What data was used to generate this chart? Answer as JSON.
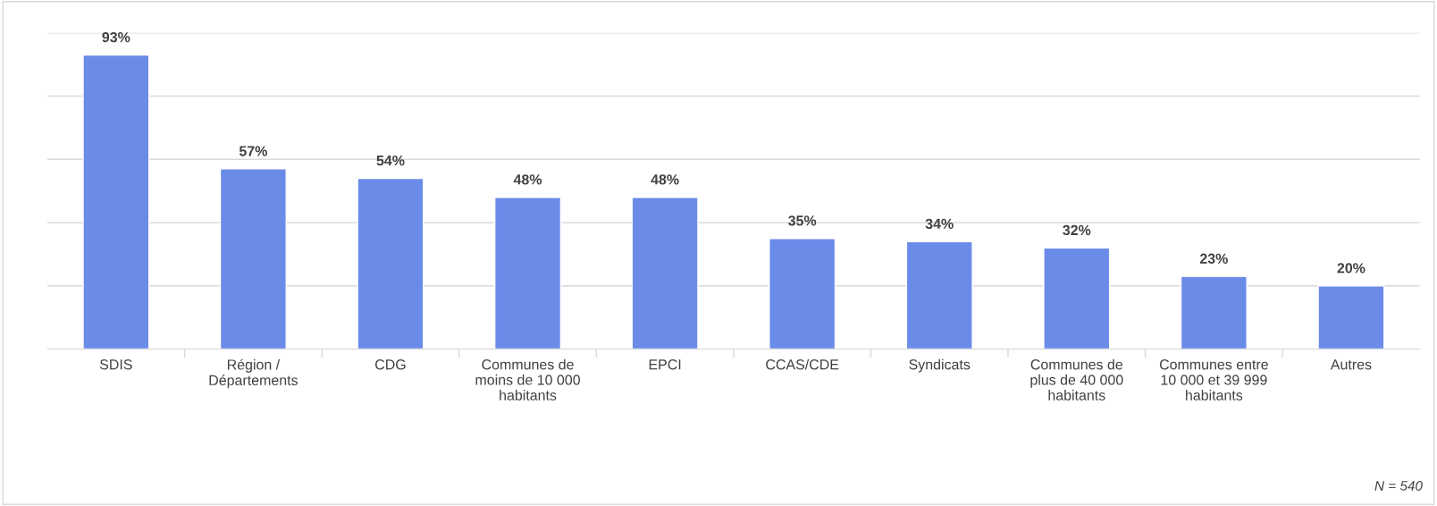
{
  "chart_data": {
    "type": "bar",
    "categories": [
      "SDIS",
      "Région /\nDépartements",
      "CDG",
      "Communes de\nmoins de 10 000\nhabitants",
      "EPCI",
      "CCAS/CDE",
      "Syndicats",
      "Communes de\nplus de 40 000\nhabitants",
      "Communes entre\n10 000 et 39 999\nhabitants",
      "Autres"
    ],
    "values": [
      93,
      57,
      54,
      48,
      48,
      35,
      34,
      32,
      23,
      20
    ],
    "value_labels": [
      "93%",
      "57%",
      "54%",
      "48%",
      "48%",
      "35%",
      "34%",
      "32%",
      "23%",
      "20%"
    ],
    "color": "#6b8be8",
    "ylim": [
      0,
      100
    ],
    "yticks": [
      {
        "value": 0,
        "label": null
      },
      {
        "value": 20,
        "label": null
      },
      {
        "value": 40,
        "label": null
      },
      {
        "value": 60,
        "label": null
      },
      {
        "value": 80,
        "label": null
      },
      {
        "value": 100,
        "label": null
      }
    ],
    "grid": "y",
    "tick_labels": "x",
    "annotations": [
      "N = 540"
    ]
  }
}
